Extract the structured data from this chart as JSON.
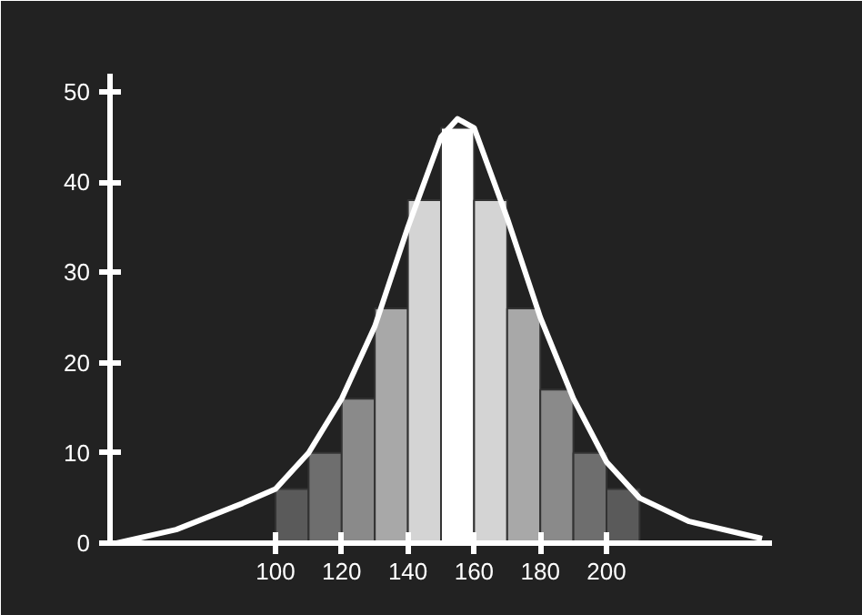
{
  "chart_data": {
    "type": "histogram",
    "bins": [
      100,
      110,
      120,
      130,
      140,
      150,
      160,
      170,
      180,
      190,
      200,
      210
    ],
    "values": [
      6,
      10,
      16,
      26,
      38,
      46,
      38,
      26,
      17,
      10,
      6
    ],
    "colors": [
      "#5a5a5a",
      "#6e6e6e",
      "#8a8a8a",
      "#a8a8a8",
      "#d4d4d4",
      "#ffffff",
      "#d4d4d4",
      "#a8a8a8",
      "#8a8a8a",
      "#6e6e6e",
      "#5a5a5a"
    ],
    "series": [
      {
        "type": "line",
        "color": "#ffffff",
        "x": [
          52,
          70,
          90,
          100,
          110,
          120,
          130,
          140,
          150,
          155,
          160,
          170,
          180,
          190,
          200,
          210,
          225,
          247
        ],
        "values": [
          0,
          1.5,
          4.4,
          6,
          10,
          16,
          24,
          35,
          45,
          47,
          46,
          36,
          25,
          16,
          9,
          5,
          2.4,
          0.5
        ]
      }
    ],
    "xlim": [
      50,
      250
    ],
    "ylim": [
      0,
      52
    ],
    "xticks": [
      100,
      120,
      140,
      160,
      180,
      200
    ],
    "yticks": [
      0,
      10,
      20,
      30,
      40,
      50
    ],
    "grid": false
  }
}
